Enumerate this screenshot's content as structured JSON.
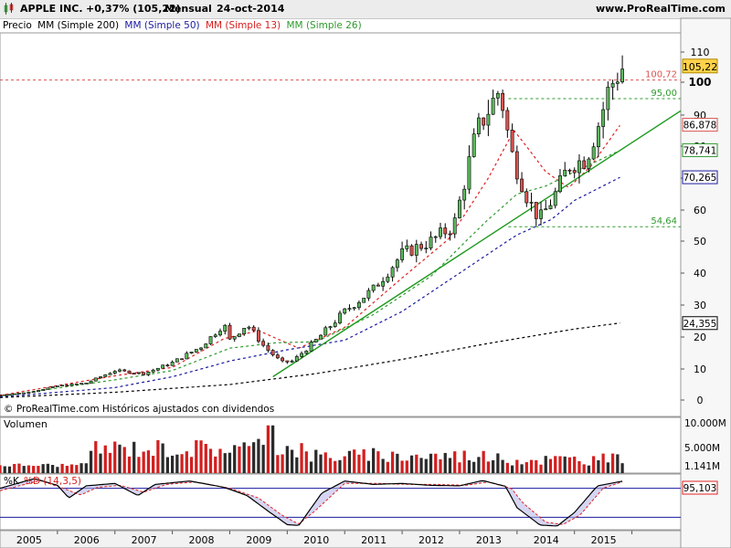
{
  "header": {
    "title": "APPLE INC.",
    "change": "+0,37% (105,22)",
    "period": "Mensual",
    "date": "24-oct-2014",
    "site": "www.ProRealTime.com",
    "icon": "candlestick-chart-icon"
  },
  "legend": {
    "price": "Precio",
    "ma200": "MM (Simple 200)",
    "ma50": "MM (Simple 50)",
    "ma13": "MM (Simple 13)",
    "ma26": "MM (Simple 26)"
  },
  "colors": {
    "up": "#5cb85c",
    "down": "#d9534f",
    "ma13": "#e02020",
    "ma26": "#2e9a2e",
    "ma50": "#1a1aa0",
    "ma200": "#000000",
    "trend": "#1f9a1f",
    "volumeUp": "#2a2a2a",
    "volumeDown": "#d21f1f"
  },
  "footer_note": "© ProRealTime.com  Históricos ajustados con dividendos",
  "volume_panel": {
    "title": "Volumen",
    "labels": [
      "10.000M",
      "5.000M",
      "1.141M"
    ]
  },
  "stoch_panel": {
    "title_k": "%K",
    "title_d": "%D (14,3,5)",
    "value": "95,103",
    "levels": [
      80,
      20
    ]
  },
  "chart_data": {
    "type": "candlestick",
    "symbol": "APPLE INC.",
    "ylim": [
      0,
      125
    ],
    "yticks": [
      0,
      10,
      20,
      30,
      40,
      50,
      60,
      70,
      80,
      90,
      100,
      110
    ],
    "x_labels": [
      "2005",
      "2006",
      "2007",
      "2008",
      "2009",
      "2010",
      "2011",
      "2012",
      "2013",
      "2014",
      "2015"
    ],
    "current_price": "105,22",
    "levels": [
      {
        "value": 100.72,
        "label": "100,72",
        "color": "#d9534f"
      },
      {
        "value": 95.0,
        "label": "95,00",
        "color": "#2e9a2e"
      },
      {
        "value": 54.64,
        "label": "54,64",
        "color": "#2e9a2e"
      }
    ],
    "ma_labels": [
      {
        "name": "MM (Simple 13)",
        "value": "86,878",
        "color": "#d9534f"
      },
      {
        "name": "MM (Simple 26)",
        "value": "78,741",
        "color": "#2e9a2e"
      },
      {
        "name": "MM (Simple 50)",
        "value": "70,265",
        "color": "#1a1aa0"
      },
      {
        "name": "MM (Simple 200)",
        "value": "24,355",
        "color": "#000000"
      }
    ],
    "close_anchors": [
      [
        2004.0,
        1.6
      ],
      [
        2004.5,
        2.5
      ],
      [
        2005.0,
        4.5
      ],
      [
        2005.5,
        5.5
      ],
      [
        2006.0,
        9.5
      ],
      [
        2006.5,
        8.5
      ],
      [
        2007.0,
        12
      ],
      [
        2007.5,
        17
      ],
      [
        2007.9,
        24
      ],
      [
        2008.0,
        19
      ],
      [
        2008.3,
        24
      ],
      [
        2008.6,
        17
      ],
      [
        2008.9,
        12
      ],
      [
        2009.1,
        12.5
      ],
      [
        2009.5,
        19
      ],
      [
        2010.0,
        28
      ],
      [
        2010.5,
        35
      ],
      [
        2011.0,
        46
      ],
      [
        2011.5,
        50
      ],
      [
        2011.9,
        55
      ],
      [
        2012.3,
        85
      ],
      [
        2012.7,
        98
      ],
      [
        2012.9,
        78
      ],
      [
        2013.2,
        63
      ],
      [
        2013.4,
        57
      ],
      [
        2013.7,
        66
      ],
      [
        2013.9,
        74
      ],
      [
        2014.2,
        76
      ],
      [
        2014.4,
        86
      ],
      [
        2014.6,
        98
      ],
      [
        2014.85,
        105.22
      ]
    ],
    "moving_averages": {
      "ma13": [
        [
          2004.0,
          1.5
        ],
        [
          2006.0,
          7.8
        ],
        [
          2007.0,
          10.5
        ],
        [
          2007.9,
          19.5
        ],
        [
          2008.5,
          22
        ],
        [
          2009.2,
          16.5
        ],
        [
          2010.0,
          23
        ],
        [
          2011.0,
          38.5
        ],
        [
          2011.8,
          50.5
        ],
        [
          2012.5,
          70
        ],
        [
          2012.95,
          85
        ],
        [
          2013.5,
          72
        ],
        [
          2013.9,
          67
        ],
        [
          2014.3,
          74
        ],
        [
          2014.8,
          86.9
        ]
      ],
      "ma26": [
        [
          2004.0,
          1.2
        ],
        [
          2006.0,
          6.5
        ],
        [
          2007.0,
          9.5
        ],
        [
          2008.0,
          16.5
        ],
        [
          2008.8,
          18.2
        ],
        [
          2009.5,
          18.5
        ],
        [
          2010.5,
          27
        ],
        [
          2011.5,
          39
        ],
        [
          2012.5,
          57
        ],
        [
          2013.0,
          65
        ],
        [
          2013.5,
          67.5
        ],
        [
          2014.0,
          72
        ],
        [
          2014.8,
          78.7
        ]
      ],
      "ma50": [
        [
          2004.0,
          1.0
        ],
        [
          2006.0,
          4.0
        ],
        [
          2007.0,
          7.5
        ],
        [
          2008.0,
          12.5
        ],
        [
          2009.0,
          16
        ],
        [
          2010.0,
          19
        ],
        [
          2011.0,
          28
        ],
        [
          2012.0,
          40
        ],
        [
          2013.0,
          52
        ],
        [
          2013.6,
          57
        ],
        [
          2014.0,
          63
        ],
        [
          2014.8,
          70.3
        ]
      ],
      "ma200": [
        [
          2004.0,
          0.8
        ],
        [
          2006.0,
          2.5
        ],
        [
          2008.0,
          5
        ],
        [
          2009.5,
          8.5
        ],
        [
          2011.0,
          13
        ],
        [
          2012.5,
          18
        ],
        [
          2014.0,
          22.5
        ],
        [
          2014.8,
          24.4
        ]
      ]
    },
    "trendline": [
      [
        2008.75,
        7.5
      ],
      [
        2014.85,
        79.5
      ]
    ],
    "stochastic": {
      "k_anchors": [
        [
          2004.0,
          80
        ],
        [
          2004.6,
          100
        ],
        [
          2005.0,
          86
        ],
        [
          2005.2,
          60
        ],
        [
          2005.5,
          85
        ],
        [
          2006.0,
          90
        ],
        [
          2006.4,
          65
        ],
        [
          2006.7,
          88
        ],
        [
          2007.3,
          95
        ],
        [
          2007.9,
          82
        ],
        [
          2008.3,
          65
        ],
        [
          2008.7,
          30
        ],
        [
          2009.0,
          5
        ],
        [
          2009.2,
          3
        ],
        [
          2009.6,
          70
        ],
        [
          2010.0,
          95
        ],
        [
          2010.5,
          88
        ],
        [
          2011.0,
          90
        ],
        [
          2011.5,
          86
        ],
        [
          2012.0,
          85
        ],
        [
          2012.4,
          96
        ],
        [
          2012.8,
          84
        ],
        [
          2013.0,
          40
        ],
        [
          2013.4,
          4
        ],
        [
          2013.7,
          2
        ],
        [
          2014.0,
          30
        ],
        [
          2014.4,
          85
        ],
        [
          2014.85,
          95.1
        ]
      ],
      "d_anchors": [
        [
          2004.0,
          75
        ],
        [
          2004.7,
          96
        ],
        [
          2005.1,
          80
        ],
        [
          2005.4,
          66
        ],
        [
          2005.7,
          82
        ],
        [
          2006.1,
          86
        ],
        [
          2006.5,
          72
        ],
        [
          2006.9,
          88
        ],
        [
          2007.4,
          93
        ],
        [
          2008.0,
          80
        ],
        [
          2008.5,
          60
        ],
        [
          2008.9,
          25
        ],
        [
          2009.2,
          6
        ],
        [
          2009.5,
          35
        ],
        [
          2010.0,
          90
        ],
        [
          2010.6,
          90
        ],
        [
          2011.1,
          88
        ],
        [
          2011.6,
          88
        ],
        [
          2012.1,
          86
        ],
        [
          2012.5,
          93
        ],
        [
          2012.9,
          80
        ],
        [
          2013.1,
          50
        ],
        [
          2013.5,
          10
        ],
        [
          2013.8,
          5
        ],
        [
          2014.1,
          25
        ],
        [
          2014.5,
          80
        ],
        [
          2014.85,
          94
        ]
      ]
    }
  }
}
